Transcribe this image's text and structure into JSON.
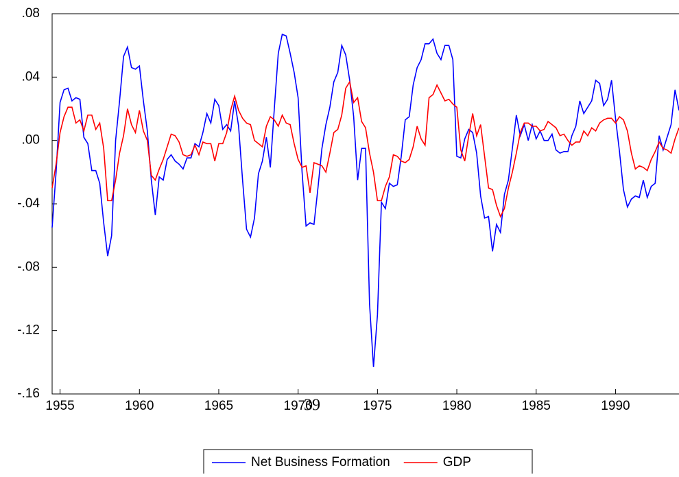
{
  "chart_data": {
    "type": "line",
    "annotation": "39",
    "x": [
      1954.5,
      1954.75,
      1955,
      1955.25,
      1955.5,
      1955.75,
      1956,
      1956.25,
      1956.5,
      1956.75,
      1957,
      1957.25,
      1957.5,
      1957.75,
      1958,
      1958.25,
      1958.5,
      1958.75,
      1959,
      1959.25,
      1959.5,
      1959.75,
      1960,
      1960.25,
      1960.5,
      1960.75,
      1961,
      1961.25,
      1961.5,
      1961.75,
      1962,
      1962.25,
      1962.5,
      1962.75,
      1963,
      1963.25,
      1963.5,
      1963.75,
      1964,
      1964.25,
      1964.5,
      1964.75,
      1965,
      1965.25,
      1965.5,
      1965.75,
      1966,
      1966.25,
      1966.5,
      1966.75,
      1967,
      1967.25,
      1967.5,
      1967.75,
      1968,
      1968.25,
      1968.5,
      1968.75,
      1969,
      1969.25,
      1969.5,
      1969.75,
      1970,
      1970.25,
      1970.5,
      1970.75,
      1971,
      1971.25,
      1971.5,
      1971.75,
      1972,
      1972.25,
      1972.5,
      1972.75,
      1973,
      1973.25,
      1973.5,
      1973.75,
      1974,
      1974.25,
      1974.5,
      1974.75,
      1975,
      1975.25,
      1975.5,
      1975.75,
      1976,
      1976.25,
      1976.5,
      1976.75,
      1977,
      1977.25,
      1977.5,
      1977.75,
      1978,
      1978.25,
      1978.5,
      1978.75,
      1979,
      1979.25,
      1979.5,
      1979.75,
      1980,
      1980.25,
      1980.5,
      1980.75,
      1981,
      1981.25,
      1981.5,
      1981.75,
      1982,
      1982.25,
      1982.5,
      1982.75,
      1983,
      1983.25,
      1983.5,
      1983.75,
      1984,
      1984.25,
      1984.5,
      1984.75,
      1985,
      1985.25,
      1985.5,
      1985.75,
      1986,
      1986.25,
      1986.5,
      1986.75,
      1987,
      1987.25,
      1987.5,
      1987.75,
      1988,
      1988.25,
      1988.5,
      1988.75,
      1989,
      1989.25,
      1989.5,
      1989.75,
      1990,
      1990.25,
      1990.5,
      1990.75,
      1991,
      1991.25,
      1991.5,
      1991.75,
      1992,
      1992.25,
      1992.5,
      1992.75,
      1993,
      1993.25,
      1993.5,
      1993.75,
      1994
    ],
    "series": [
      {
        "name": "Net Business Formation",
        "color": "#0000ff",
        "values": [
          -0.055,
          -0.02,
          0.024,
          0.032,
          0.033,
          0.025,
          0.027,
          0.026,
          0.002,
          -0.002,
          -0.019,
          -0.019,
          -0.027,
          -0.052,
          -0.073,
          -0.06,
          0.0,
          0.025,
          0.053,
          0.059,
          0.046,
          0.045,
          0.047,
          0.025,
          0.006,
          -0.025,
          -0.047,
          -0.023,
          -0.025,
          -0.012,
          -0.009,
          -0.013,
          -0.015,
          -0.018,
          -0.011,
          -0.011,
          -0.002,
          -0.004,
          0.005,
          0.017,
          0.011,
          0.026,
          0.022,
          0.007,
          0.01,
          0.006,
          0.025,
          0.009,
          -0.025,
          -0.056,
          -0.061,
          -0.049,
          -0.021,
          -0.013,
          0.002,
          -0.017,
          0.02,
          0.055,
          0.067,
          0.066,
          0.055,
          0.043,
          0.027,
          -0.02,
          -0.054,
          -0.052,
          -0.053,
          -0.03,
          -0.005,
          0.01,
          0.021,
          0.037,
          0.043,
          0.06,
          0.054,
          0.038,
          0.015,
          -0.025,
          -0.005,
          -0.005,
          -0.103,
          -0.143,
          -0.11,
          -0.039,
          -0.043,
          -0.027,
          -0.029,
          -0.028,
          -0.01,
          0.013,
          0.015,
          0.035,
          0.046,
          0.051,
          0.061,
          0.061,
          0.064,
          0.055,
          0.051,
          0.06,
          0.06,
          0.051,
          -0.01,
          -0.011,
          0.001,
          0.007,
          0.005,
          -0.008,
          -0.035,
          -0.049,
          -0.048,
          -0.07,
          -0.053,
          -0.058,
          -0.034,
          -0.025,
          -0.005,
          0.016,
          0.003,
          0.01,
          0.0,
          0.01,
          0.001,
          0.006,
          0.0,
          0.0,
          0.004,
          -0.006,
          -0.008,
          -0.007,
          -0.007,
          0.003,
          0.009,
          0.025,
          0.017,
          0.021,
          0.025,
          0.038,
          0.036,
          0.022,
          0.026,
          0.038,
          0.014,
          -0.007,
          -0.031,
          -0.042,
          -0.037,
          -0.035,
          -0.036,
          -0.025,
          -0.036,
          -0.029,
          -0.027,
          0.003,
          -0.006,
          0.002,
          0.01,
          0.032,
          0.019
        ]
      },
      {
        "name": "GDP",
        "color": "#ff0000",
        "values": [
          -0.03,
          -0.015,
          0.005,
          0.015,
          0.021,
          0.021,
          0.011,
          0.013,
          0.006,
          0.016,
          0.016,
          0.007,
          0.011,
          -0.005,
          -0.038,
          -0.038,
          -0.025,
          -0.008,
          0.003,
          0.02,
          0.01,
          0.005,
          0.019,
          0.006,
          0.0,
          -0.022,
          -0.025,
          -0.018,
          -0.012,
          -0.004,
          0.004,
          0.003,
          -0.001,
          -0.009,
          -0.01,
          -0.009,
          -0.003,
          -0.009,
          -0.001,
          -0.002,
          -0.002,
          -0.013,
          -0.002,
          -0.002,
          0.005,
          0.019,
          0.028,
          0.019,
          0.014,
          0.011,
          0.01,
          0.0,
          -0.002,
          -0.004,
          0.009,
          0.015,
          0.013,
          0.009,
          0.016,
          0.011,
          0.01,
          -0.002,
          -0.012,
          -0.017,
          -0.016,
          -0.033,
          -0.014,
          -0.015,
          -0.016,
          -0.02,
          -0.008,
          0.005,
          0.007,
          0.016,
          0.033,
          0.037,
          0.024,
          0.027,
          0.012,
          0.008,
          -0.008,
          -0.02,
          -0.038,
          -0.038,
          -0.029,
          -0.023,
          -0.009,
          -0.01,
          -0.013,
          -0.014,
          -0.012,
          -0.004,
          0.009,
          0.001,
          -0.003,
          0.027,
          0.029,
          0.035,
          0.03,
          0.025,
          0.026,
          0.023,
          0.021,
          -0.006,
          -0.013,
          0.003,
          0.017,
          0.003,
          0.01,
          -0.01,
          -0.03,
          -0.031,
          -0.041,
          -0.048,
          -0.043,
          -0.03,
          -0.02,
          -0.008,
          0.005,
          0.011,
          0.011,
          0.009,
          0.009,
          0.006,
          0.007,
          0.012,
          0.01,
          0.008,
          0.003,
          0.004,
          0.0,
          -0.003,
          -0.001,
          -0.001,
          0.006,
          0.003,
          0.008,
          0.006,
          0.011,
          0.013,
          0.014,
          0.014,
          0.011,
          0.015,
          0.013,
          0.006,
          -0.008,
          -0.018,
          -0.016,
          -0.017,
          -0.019,
          -0.012,
          -0.007,
          -0.001,
          -0.005,
          -0.006,
          -0.008,
          0.001,
          0.008
        ]
      }
    ],
    "xlim": [
      1954.5,
      1994
    ],
    "xticks": [
      1955,
      1960,
      1965,
      1970,
      1975,
      1980,
      1985,
      1990
    ],
    "ylim": [
      -0.16,
      0.08
    ],
    "yticks": [
      {
        "value": -0.16,
        "label": "-.16"
      },
      {
        "value": -0.12,
        "label": "-.12"
      },
      {
        "value": -0.08,
        "label": "-.08"
      },
      {
        "value": -0.04,
        "label": "-.04"
      },
      {
        "value": 0,
        "label": ".00"
      },
      {
        "value": 0.04,
        "label": ".04"
      },
      {
        "value": 0.08,
        "label": ".08"
      }
    ],
    "grid": false,
    "legend": "bottom"
  }
}
